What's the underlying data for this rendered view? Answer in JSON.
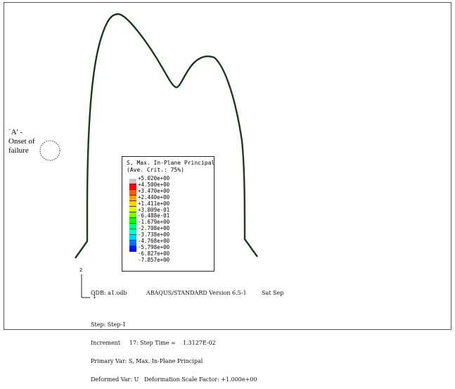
{
  "annotation": {
    "label_line1": "`A' -",
    "label_line2": "Onset of",
    "label_line3": "failure"
  },
  "legend": {
    "title_line1": "S, Max. In-Plane Principal",
    "title_line2": "(Ave. Crit.: 75%)",
    "entries": [
      {
        "label": "+5.020e+00",
        "color": "#c8c8c8"
      },
      {
        "label": "+4.500e+00",
        "color": "#ff0000"
      },
      {
        "label": "+3.470e+00",
        "color": "#ff5a00"
      },
      {
        "label": "+2.440e+00",
        "color": "#ffa500"
      },
      {
        "label": "+1.411e+00",
        "color": "#ffd200"
      },
      {
        "label": "+3.809e-01",
        "color": "#d4ff00"
      },
      {
        "label": "-6.488e-01",
        "color": "#7dff00"
      },
      {
        "label": "-1.679e+00",
        "color": "#00ff00"
      },
      {
        "label": "-2.708e+00",
        "color": "#00ff7a"
      },
      {
        "label": "-3.738e+00",
        "color": "#00ffd0"
      },
      {
        "label": "-4.768e+00",
        "color": "#00d0ff"
      },
      {
        "label": "-5.798e+00",
        "color": "#0070ff"
      },
      {
        "label": "-6.827e+00",
        "color": "#0010ff"
      },
      {
        "label": "-7.857e+00",
        "color": ""
      }
    ]
  },
  "axis": {
    "y_label": "2",
    "x_label": "1"
  },
  "info": {
    "odb": "ODB: a1.odb",
    "solver": "ABAQUS/STANDARD Version 6.5-1",
    "date": "Sat Sep",
    "step": "Step: Step-1",
    "increment": "Increment     17: Step Time =    1.3127E-02",
    "primary_var": "Primary Var: S, Max. In-Plane Principal",
    "deformed_var": "Deformed Var: U   Deformation Scale Factor: +1.000e+00"
  }
}
